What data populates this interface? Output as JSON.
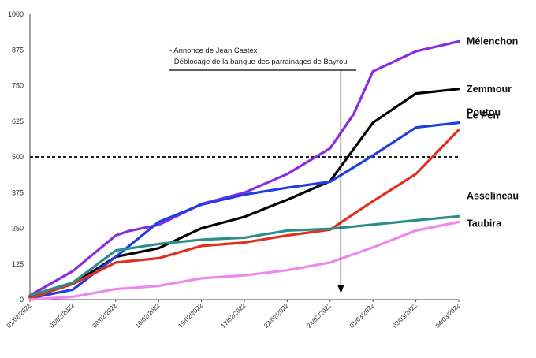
{
  "chart_data": {
    "type": "line",
    "title": "",
    "xlabel": "",
    "ylabel": "",
    "ylim": [
      0,
      1000
    ],
    "yticks": [
      0,
      125,
      250,
      375,
      500,
      625,
      750,
      875,
      1000
    ],
    "ytick_labels": [
      "0",
      "125",
      "250",
      "375",
      "500",
      "625",
      "750",
      "875",
      "1000"
    ],
    "categories": [
      "01/02/2022",
      "03/02/2022",
      "08/02/2022",
      "10/02/2022",
      "15/02/2022",
      "17/02/2022",
      "22/02/2022",
      "24/02/2022",
      "01/03/2022",
      "03/03/2022",
      "04/03/2022"
    ],
    "x_positions": [
      0,
      1,
      2,
      3,
      4,
      5,
      6,
      7,
      8,
      9,
      10
    ],
    "threshold": {
      "value": 500,
      "style": "dashed"
    },
    "annotation": {
      "lines": [
        "- Annonce de Jean Castex",
        "- Déblocage de la banque des parrainages de Bayrou"
      ],
      "x": 7.25
    },
    "series": [
      {
        "name": "Mélenchon",
        "label": "Mélenchon",
        "color": "#8a2be2",
        "x": [
          0,
          1,
          2,
          2.3,
          3,
          4,
          5,
          6,
          7,
          7.55,
          8,
          9,
          10
        ],
        "values": [
          15,
          100,
          225,
          240,
          262,
          335,
          375,
          440,
          530,
          650,
          800,
          870,
          905
        ]
      },
      {
        "name": "Zemmour",
        "label": "Zemmour",
        "color": "#000000",
        "x": [
          0,
          1,
          2,
          3,
          4,
          5,
          6,
          7,
          8,
          9,
          10
        ],
        "values": [
          10,
          55,
          150,
          180,
          250,
          290,
          350,
          415,
          620,
          722,
          738
        ]
      },
      {
        "name": "Le Pen",
        "label": "Le Pen",
        "color": "#1e40e0",
        "x": [
          0,
          1,
          2,
          3,
          4,
          5,
          6,
          7,
          8,
          9,
          10
        ],
        "values": [
          5,
          35,
          150,
          272,
          333,
          368,
          392,
          413,
          505,
          603,
          620
        ]
      },
      {
        "name": "Poutou",
        "label": "Poutou",
        "color": "#e03020",
        "x": [
          0,
          1,
          2,
          3,
          4,
          5,
          6,
          7,
          8,
          9,
          10
        ],
        "values": [
          5,
          55,
          130,
          145,
          188,
          200,
          225,
          245,
          345,
          440,
          595
        ]
      },
      {
        "name": "Asselineau",
        "label": "Asselineau",
        "color": "#2a8f8a",
        "x": [
          0,
          1,
          2,
          3,
          4,
          5,
          6,
          7,
          8,
          9,
          10
        ],
        "values": [
          15,
          60,
          172,
          195,
          210,
          217,
          242,
          248,
          263,
          278,
          292
        ]
      },
      {
        "name": "Taubira",
        "label": "Taubira",
        "color": "#ee88ee",
        "x": [
          0,
          1,
          2,
          3,
          4,
          5,
          6,
          7,
          8,
          9,
          10
        ],
        "values": [
          0,
          10,
          37,
          48,
          75,
          85,
          103,
          130,
          183,
          242,
          272
        ]
      }
    ]
  }
}
